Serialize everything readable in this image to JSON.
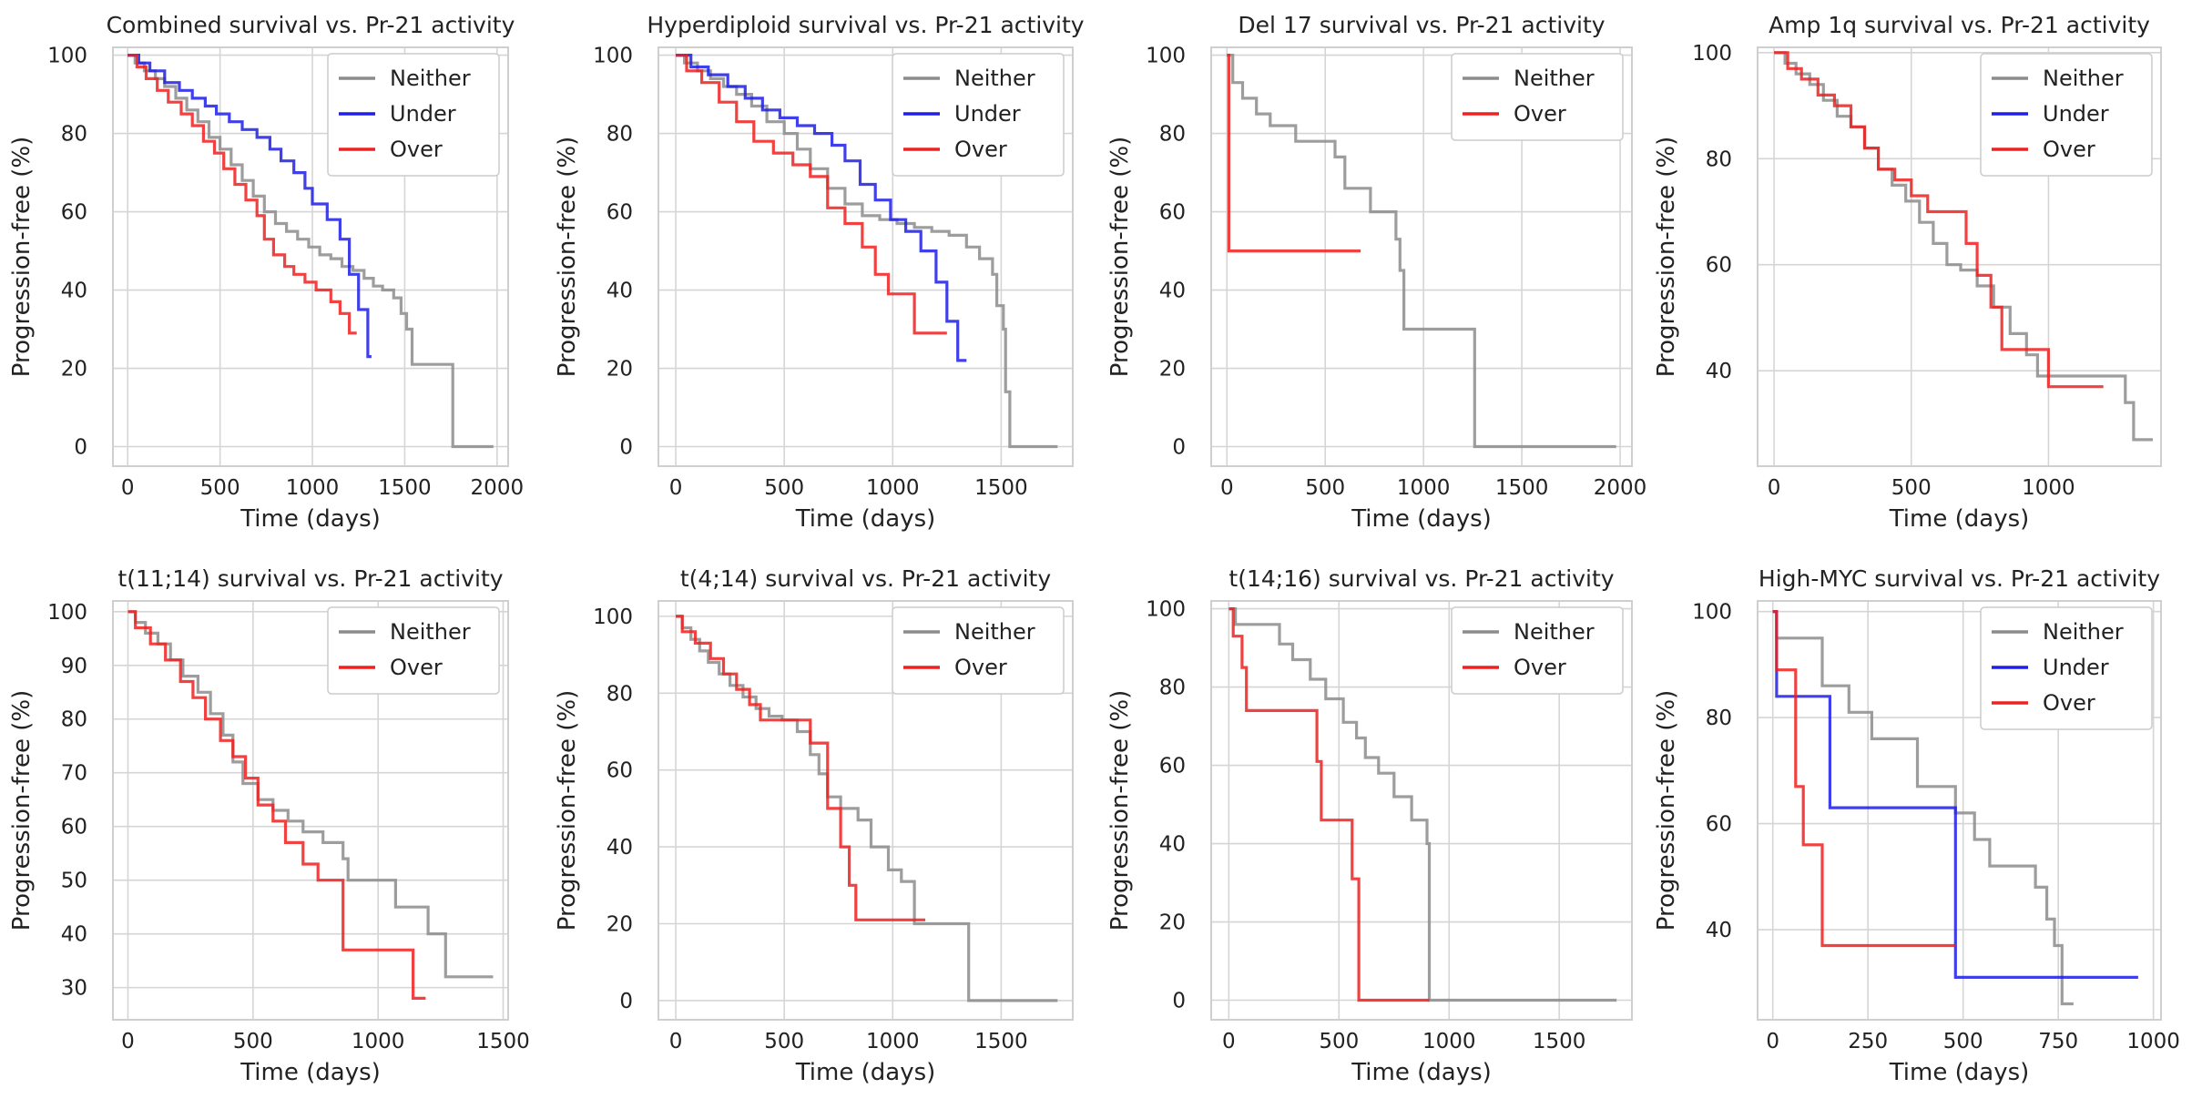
{
  "colors": {
    "Neither": "#8c8c8c",
    "Under": "#1f1fe6",
    "Over": "#ee2020"
  },
  "chart_data": [
    {
      "type": "line",
      "title": "Combined survival vs. Pr-21 activity",
      "xlabel": "Time (days)",
      "ylabel": "Progression-free (%)",
      "xlim": [
        -80,
        2060
      ],
      "ylim": [
        -5,
        102
      ],
      "xticks": [
        0,
        500,
        1000,
        1500,
        2000
      ],
      "yticks": [
        0,
        20,
        40,
        60,
        80,
        100
      ],
      "legend": [
        "Neither",
        "Under",
        "Over"
      ],
      "legend_position": "top-right",
      "series": [
        {
          "name": "Neither",
          "x": [
            0,
            40,
            90,
            150,
            200,
            260,
            320,
            380,
            440,
            500,
            560,
            620,
            680,
            740,
            800,
            860,
            920,
            980,
            1040,
            1100,
            1160,
            1220,
            1280,
            1330,
            1380,
            1440,
            1480,
            1510,
            1540,
            1760,
            1980
          ],
          "y": [
            100,
            98,
            96,
            94,
            92,
            89,
            86,
            83,
            79,
            76,
            72,
            68,
            64,
            60,
            57,
            55,
            53,
            51,
            49,
            48,
            46,
            45,
            43,
            41,
            40,
            38,
            34,
            30,
            21,
            0,
            0
          ]
        },
        {
          "name": "Under",
          "x": [
            0,
            60,
            120,
            200,
            280,
            350,
            420,
            480,
            550,
            620,
            700,
            770,
            830,
            900,
            960,
            1000,
            1080,
            1150,
            1200,
            1250,
            1300,
            1320
          ],
          "y": [
            100,
            98,
            96,
            93,
            91,
            89,
            87,
            85,
            83,
            81,
            79,
            76,
            73,
            70,
            66,
            62,
            58,
            53,
            44,
            35,
            23,
            23
          ]
        },
        {
          "name": "Over",
          "x": [
            0,
            50,
            100,
            160,
            220,
            290,
            350,
            410,
            470,
            520,
            580,
            640,
            700,
            740,
            790,
            850,
            900,
            960,
            1020,
            1100,
            1150,
            1200,
            1240
          ],
          "y": [
            100,
            97,
            94,
            91,
            88,
            85,
            82,
            78,
            75,
            71,
            67,
            63,
            59,
            53,
            49,
            46,
            44,
            42,
            40,
            37,
            34,
            29,
            29
          ]
        }
      ]
    },
    {
      "type": "line",
      "title": "Hyperdiploid survival vs. Pr-21 activity",
      "xlabel": "Time (days)",
      "ylabel": "Progression-free (%)",
      "xlim": [
        -80,
        1830
      ],
      "ylim": [
        -5,
        102
      ],
      "xticks": [
        0,
        500,
        1000,
        1500
      ],
      "yticks": [
        0,
        20,
        40,
        60,
        80,
        100
      ],
      "legend": [
        "Neither",
        "Under",
        "Over"
      ],
      "legend_position": "top-right",
      "series": [
        {
          "name": "Neither",
          "x": [
            0,
            40,
            100,
            160,
            220,
            280,
            350,
            420,
            500,
            560,
            620,
            700,
            780,
            860,
            940,
            1020,
            1100,
            1180,
            1260,
            1340,
            1400,
            1460,
            1480,
            1510,
            1520,
            1540,
            1760
          ],
          "y": [
            100,
            98,
            96,
            94,
            92,
            90,
            87,
            83,
            80,
            76,
            71,
            66,
            62,
            59,
            58,
            57,
            56,
            55,
            54,
            51,
            48,
            44,
            36,
            30,
            14,
            0,
            0
          ]
        },
        {
          "name": "Under",
          "x": [
            0,
            70,
            150,
            240,
            320,
            400,
            480,
            560,
            640,
            720,
            780,
            850,
            920,
            990,
            1060,
            1130,
            1200,
            1250,
            1300,
            1340
          ],
          "y": [
            100,
            97,
            95,
            92,
            89,
            86,
            84,
            82,
            80,
            77,
            73,
            67,
            63,
            58,
            55,
            50,
            42,
            32,
            22,
            22
          ]
        },
        {
          "name": "Over",
          "x": [
            0,
            50,
            120,
            200,
            280,
            360,
            450,
            540,
            620,
            700,
            780,
            860,
            920,
            980,
            1100,
            1180,
            1250
          ],
          "y": [
            100,
            96,
            93,
            88,
            83,
            78,
            75,
            72,
            69,
            61,
            57,
            51,
            44,
            39,
            29,
            29,
            29
          ]
        }
      ]
    },
    {
      "type": "line",
      "title": "Del 17 survival vs. Pr-21 activity",
      "xlabel": "Time (days)",
      "ylabel": "Progression-free (%)",
      "xlim": [
        -80,
        2060
      ],
      "ylim": [
        -5,
        102
      ],
      "xticks": [
        0,
        500,
        1000,
        1500,
        2000
      ],
      "yticks": [
        0,
        20,
        40,
        60,
        80,
        100
      ],
      "legend": [
        "Neither",
        "Over"
      ],
      "legend_position": "top-right",
      "series": [
        {
          "name": "Neither",
          "x": [
            0,
            30,
            80,
            150,
            220,
            350,
            550,
            600,
            730,
            860,
            880,
            900,
            1260,
            1980
          ],
          "y": [
            100,
            93,
            89,
            85,
            82,
            78,
            74,
            66,
            60,
            53,
            45,
            30,
            0,
            0
          ]
        },
        {
          "name": "Over",
          "x": [
            0,
            10,
            680
          ],
          "y": [
            100,
            50,
            50
          ]
        }
      ]
    },
    {
      "type": "line",
      "title": "Amp 1q survival vs. Pr-21 activity",
      "xlabel": "Time (days)",
      "ylabel": "Progression-free (%)",
      "xlim": [
        -60,
        1410
      ],
      "ylim": [
        22,
        101
      ],
      "xticks": [
        0,
        500,
        1000
      ],
      "yticks": [
        40,
        60,
        80,
        100
      ],
      "legend": [
        "Neither",
        "Under",
        "Over"
      ],
      "legend_position": "top-right",
      "series": [
        {
          "name": "Neither",
          "x": [
            0,
            40,
            80,
            130,
            180,
            230,
            280,
            330,
            380,
            430,
            480,
            530,
            580,
            630,
            680,
            740,
            800,
            860,
            920,
            960,
            1000,
            1240,
            1280,
            1310,
            1380
          ],
          "y": [
            100,
            98,
            96,
            94,
            91,
            88,
            86,
            82,
            78,
            75,
            72,
            68,
            64,
            60,
            59,
            56,
            52,
            47,
            43,
            39,
            39,
            39,
            34,
            27,
            27
          ]
        },
        {
          "name": "Over",
          "x": [
            0,
            50,
            100,
            160,
            220,
            280,
            330,
            380,
            440,
            500,
            560,
            620,
            700,
            740,
            790,
            830,
            970,
            1000,
            1200
          ],
          "y": [
            100,
            97,
            95,
            92,
            90,
            86,
            82,
            78,
            76,
            73,
            70,
            70,
            64,
            58,
            52,
            44,
            44,
            37,
            37
          ]
        }
      ]
    },
    {
      "type": "line",
      "title": "t(11;14) survival vs. Pr-21 activity",
      "xlabel": "Time (days)",
      "ylabel": "Progression-free (%)",
      "xlim": [
        -60,
        1520
      ],
      "ylim": [
        24,
        102
      ],
      "xticks": [
        0,
        500,
        1000,
        1500
      ],
      "yticks": [
        30,
        40,
        50,
        60,
        70,
        80,
        90,
        100
      ],
      "legend": [
        "Neither",
        "Over"
      ],
      "legend_position": "top-right",
      "series": [
        {
          "name": "Neither",
          "x": [
            0,
            30,
            70,
            120,
            170,
            220,
            280,
            330,
            380,
            420,
            460,
            520,
            580,
            640,
            700,
            780,
            860,
            880,
            1070,
            1200,
            1270,
            1460
          ],
          "y": [
            100,
            98,
            96,
            94,
            91,
            88,
            85,
            81,
            77,
            72,
            68,
            65,
            63,
            61,
            59,
            57,
            54,
            50,
            45,
            40,
            32,
            32
          ]
        },
        {
          "name": "Over",
          "x": [
            0,
            30,
            90,
            150,
            210,
            260,
            310,
            370,
            420,
            470,
            520,
            580,
            630,
            700,
            760,
            860,
            1140,
            1190
          ],
          "y": [
            100,
            97,
            94,
            91,
            87,
            84,
            80,
            76,
            73,
            69,
            64,
            61,
            57,
            53,
            50,
            37,
            28,
            28
          ]
        }
      ]
    },
    {
      "type": "line",
      "title": "t(4;14) survival vs. Pr-21 activity",
      "xlabel": "Time (days)",
      "ylabel": "Progression-free (%)",
      "xlim": [
        -80,
        1830
      ],
      "ylim": [
        -5,
        104
      ],
      "xticks": [
        0,
        500,
        1000,
        1500
      ],
      "yticks": [
        0,
        20,
        40,
        60,
        80,
        100
      ],
      "legend": [
        "Neither",
        "Over"
      ],
      "legend_position": "top-right",
      "series": [
        {
          "name": "Neither",
          "x": [
            0,
            30,
            70,
            110,
            150,
            200,
            250,
            310,
            370,
            430,
            490,
            560,
            620,
            660,
            700,
            760,
            840,
            900,
            980,
            1040,
            1100,
            1350,
            1760
          ],
          "y": [
            100,
            97,
            94,
            91,
            88,
            85,
            82,
            79,
            76,
            74,
            73,
            70,
            64,
            59,
            53,
            50,
            47,
            40,
            34,
            31,
            20,
            0,
            0
          ]
        },
        {
          "name": "Over",
          "x": [
            0,
            30,
            90,
            160,
            220,
            280,
            340,
            390,
            620,
            700,
            760,
            800,
            830,
            1150
          ],
          "y": [
            100,
            96,
            93,
            89,
            85,
            81,
            77,
            73,
            67,
            50,
            40,
            30,
            21,
            21
          ]
        }
      ]
    },
    {
      "type": "line",
      "title": "t(14;16) survival vs. Pr-21 activity",
      "xlabel": "Time (days)",
      "ylabel": "Progression-free (%)",
      "xlim": [
        -80,
        1830
      ],
      "ylim": [
        -5,
        102
      ],
      "xticks": [
        0,
        500,
        1000,
        1500
      ],
      "yticks": [
        0,
        20,
        40,
        60,
        80,
        100
      ],
      "legend": [
        "Neither",
        "Over"
      ],
      "legend_position": "top-right",
      "series": [
        {
          "name": "Neither",
          "x": [
            0,
            30,
            230,
            290,
            370,
            440,
            520,
            580,
            620,
            680,
            750,
            830,
            900,
            910,
            1760
          ],
          "y": [
            100,
            96,
            91,
            87,
            82,
            77,
            71,
            67,
            62,
            58,
            52,
            46,
            40,
            0,
            0
          ]
        },
        {
          "name": "Over",
          "x": [
            0,
            20,
            60,
            80,
            380,
            400,
            420,
            540,
            560,
            590,
            910
          ],
          "y": [
            100,
            93,
            85,
            74,
            74,
            61,
            46,
            46,
            31,
            0,
            0
          ]
        }
      ]
    },
    {
      "type": "line",
      "title": "High-MYC survival vs. Pr-21 activity",
      "xlabel": "Time (days)",
      "ylabel": "Progression-free (%)",
      "xlim": [
        -40,
        1020
      ],
      "ylim": [
        23,
        102
      ],
      "xticks": [
        0,
        250,
        500,
        750,
        1000
      ],
      "yticks": [
        40,
        60,
        80,
        100
      ],
      "legend": [
        "Neither",
        "Under",
        "Over"
      ],
      "legend_position": "top-right",
      "series": [
        {
          "name": "Neither",
          "x": [
            0,
            10,
            100,
            130,
            200,
            240,
            260,
            380,
            480,
            530,
            570,
            690,
            720,
            740,
            760,
            790
          ],
          "y": [
            100,
            95,
            95,
            86,
            81,
            81,
            76,
            67,
            62,
            57,
            52,
            48,
            42,
            37,
            26,
            26
          ]
        },
        {
          "name": "Under",
          "x": [
            0,
            10,
            150,
            480,
            960
          ],
          "y": [
            100,
            84,
            63,
            31,
            31
          ]
        },
        {
          "name": "Over",
          "x": [
            0,
            10,
            60,
            80,
            130,
            480
          ],
          "y": [
            100,
            89,
            67,
            56,
            37,
            37
          ]
        }
      ]
    }
  ]
}
